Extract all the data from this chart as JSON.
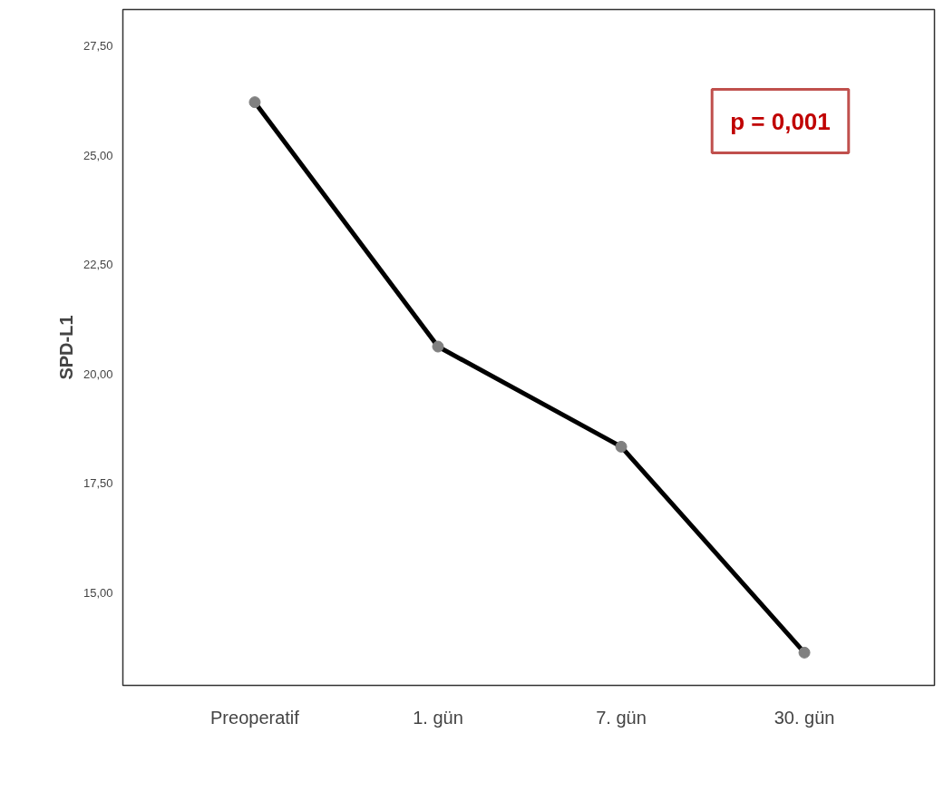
{
  "chart_data": {
    "type": "line",
    "ylabel": "SPD-L1",
    "categories": [
      "Preoperatif",
      "1. gün",
      "7. gün",
      "30. gün"
    ],
    "series": [
      {
        "color": "#000000",
        "values": [
          26.22,
          20.63,
          18.34,
          13.63
        ]
      }
    ],
    "ylim": [
      12.88,
      28.34
    ],
    "yticks": [
      {
        "value": 15,
        "label": "15,00"
      },
      {
        "value": 17.5,
        "label": "17,50"
      },
      {
        "value": 20,
        "label": "20,00"
      },
      {
        "value": 22.5,
        "label": "22,50"
      },
      {
        "value": 25,
        "label": "25,00"
      },
      {
        "value": 27.5,
        "label": "27,50"
      }
    ],
    "marker": "circle",
    "grid": false,
    "annotations": [
      "p = 0,001"
    ]
  }
}
